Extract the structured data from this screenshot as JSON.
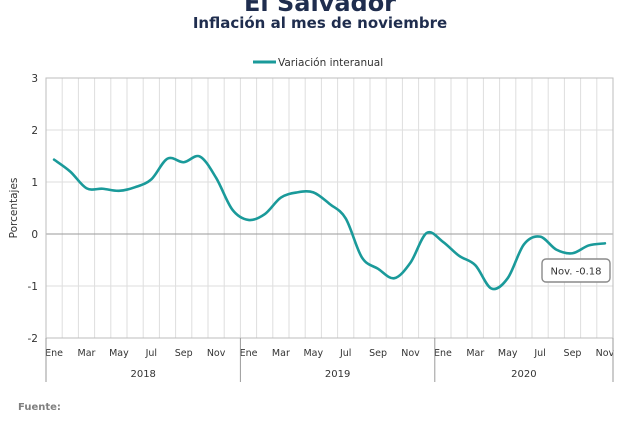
{
  "chart_data": {
    "type": "line",
    "title": "El Salvador",
    "subtitle": "Inflación al mes de noviembre",
    "ylabel": "Porcentajes",
    "ylim": [
      -2,
      3
    ],
    "yticks": [
      "3",
      "2",
      "1",
      "0",
      "-1",
      "-2"
    ],
    "grid": true,
    "legend_position": "top",
    "months": [
      "Ene",
      "Feb",
      "Mar",
      "Abr",
      "May",
      "Jun",
      "Jul",
      "Ago",
      "Sep",
      "Oct",
      "Nov",
      "Dic",
      "Ene",
      "Feb",
      "Mar",
      "Abr",
      "May",
      "Jun",
      "Jul",
      "Ago",
      "Sep",
      "Oct",
      "Nov",
      "Dic",
      "Ene",
      "Feb",
      "Mar",
      "Abr",
      "May",
      "Jun",
      "Jul",
      "Ago",
      "Sep",
      "Oct",
      "Nov"
    ],
    "month_labels": [
      "Ene",
      "",
      "Mar",
      "",
      "May",
      "",
      "Jul",
      "",
      "Sep",
      "",
      "Nov",
      "",
      "Ene",
      "",
      "Mar",
      "",
      "May",
      "",
      "Jul",
      "",
      "Sep",
      "",
      "Nov",
      "",
      "Ene",
      "",
      "Mar",
      "",
      "May",
      "",
      "Jul",
      "",
      "Sep",
      "",
      "Nov"
    ],
    "years": [
      {
        "label": "2018",
        "start": 0,
        "end": 11
      },
      {
        "label": "2019",
        "start": 12,
        "end": 23
      },
      {
        "label": "2020",
        "start": 24,
        "end": 34
      }
    ],
    "series": [
      {
        "name": "Variación interanual",
        "color": "#1a9a9a",
        "values": [
          1.43,
          1.2,
          0.88,
          0.87,
          0.83,
          0.9,
          1.05,
          1.45,
          1.38,
          1.49,
          1.08,
          0.47,
          0.27,
          0.38,
          0.7,
          0.8,
          0.8,
          0.58,
          0.3,
          -0.45,
          -0.67,
          -0.85,
          -0.55,
          0.02,
          -0.15,
          -0.42,
          -0.6,
          -1.05,
          -0.85,
          -0.2,
          -0.05,
          -0.3,
          -0.37,
          -0.22,
          -0.18
        ]
      }
    ],
    "annotation": "Nov. -0.18"
  },
  "footer": {
    "label": "Fuente:"
  }
}
